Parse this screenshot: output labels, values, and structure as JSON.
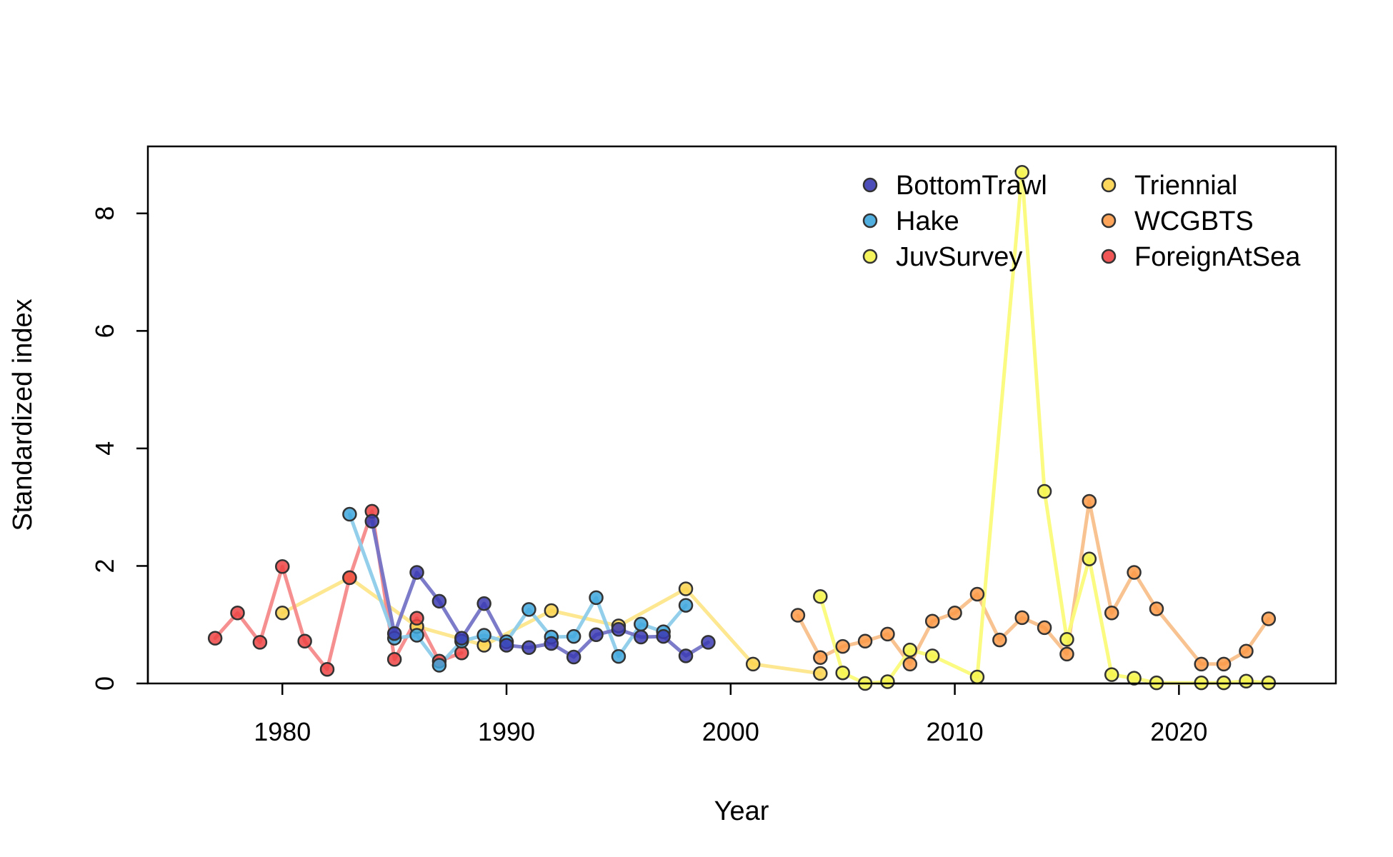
{
  "chart_data": {
    "type": "line",
    "xlabel": "Year",
    "ylabel": "Standardized index",
    "xlim": [
      1974,
      2027
    ],
    "ylim": [
      0,
      9.14
    ],
    "x_ticks": [
      1980,
      1990,
      2000,
      2010,
      2020
    ],
    "y_ticks": [
      0,
      2,
      4,
      6,
      8
    ],
    "grid": false,
    "legend_position": "top-right",
    "series": [
      {
        "name": "Triennial",
        "color": "#FCD34D",
        "line_color": "#FDE68A",
        "x": [
          1980,
          1983,
          1986,
          1989,
          1992,
          1995,
          1998,
          2001,
          2004
        ],
        "values": [
          1.2,
          1.8,
          0.97,
          0.65,
          1.24,
          0.98,
          1.61,
          0.33,
          0.17
        ]
      },
      {
        "name": "WCGBTS",
        "color": "#FB9A48",
        "line_color": "#F8C08A",
        "x": [
          2003,
          2004,
          2005,
          2006,
          2007,
          2008,
          2009,
          2010,
          2011,
          2012,
          2013,
          2014,
          2015,
          2016,
          2017,
          2018,
          2019,
          2021,
          2022,
          2023,
          2024
        ],
        "values": [
          1.16,
          0.44,
          0.63,
          0.72,
          0.84,
          0.33,
          1.06,
          1.2,
          1.52,
          0.74,
          1.12,
          0.95,
          0.5,
          3.1,
          1.2,
          1.89,
          1.27,
          0.33,
          0.33,
          0.55,
          1.1
        ]
      },
      {
        "name": "JuvSurvey",
        "color": "#F4F34A",
        "line_color": "#FBFB7A",
        "x": [
          2004,
          2005,
          2006,
          2007,
          2008,
          2009,
          2011,
          2013,
          2014,
          2015,
          2016,
          2017,
          2018,
          2019,
          2021,
          2022,
          2023,
          2024
        ],
        "values": [
          1.48,
          0.18,
          0.0,
          0.03,
          0.57,
          0.47,
          0.11,
          8.7,
          3.27,
          0.75,
          2.12,
          0.15,
          0.09,
          0.01,
          0.01,
          0.01,
          0.04,
          0.01
        ]
      },
      {
        "name": "ForeignAtSea",
        "color": "#EF4444",
        "line_color": "#F58A8A",
        "x": [
          1977,
          1978,
          1979,
          1980,
          1981,
          1982,
          1983,
          1984,
          1985,
          1986,
          1987,
          1988
        ],
        "values": [
          0.77,
          1.2,
          0.7,
          1.99,
          0.72,
          0.24,
          1.8,
          2.93,
          0.41,
          1.11,
          0.38,
          0.52
        ]
      },
      {
        "name": "Hake",
        "color": "#3EA6DD",
        "line_color": "#8DCCEA",
        "x": [
          1983,
          1985,
          1986,
          1987,
          1988,
          1989,
          1990,
          1991,
          1992,
          1993,
          1994,
          1995,
          1996,
          1997,
          1998
        ],
        "values": [
          2.88,
          0.77,
          0.82,
          0.31,
          0.72,
          0.82,
          0.71,
          1.26,
          0.79,
          0.8,
          1.46,
          0.46,
          1.01,
          0.88,
          1.33
        ]
      },
      {
        "name": "BottomTrawl",
        "color": "#3B3BB3",
        "line_color": "#7474C6",
        "x": [
          1984,
          1985,
          1986,
          1987,
          1988,
          1989,
          1990,
          1991,
          1992,
          1993,
          1994,
          1995,
          1996,
          1997,
          1998,
          1999
        ],
        "values": [
          2.76,
          0.85,
          1.89,
          1.4,
          0.77,
          1.36,
          0.65,
          0.61,
          0.68,
          0.45,
          0.83,
          0.92,
          0.79,
          0.8,
          0.47,
          0.7
        ]
      }
    ],
    "legend_order": [
      "BottomTrawl",
      "Hake",
      "JuvSurvey",
      "Triennial",
      "WCGBTS",
      "ForeignAtSea"
    ]
  }
}
